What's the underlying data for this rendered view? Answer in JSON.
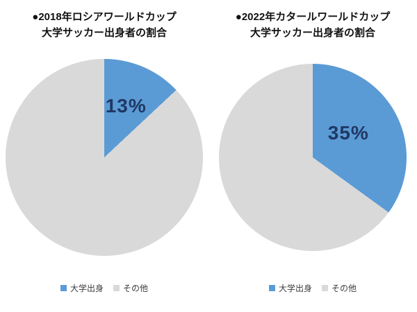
{
  "colors": {
    "series_blue": "#5B9BD5",
    "series_gray": "#D9D9D9",
    "data_label": "#1F3864",
    "title_text": "#111111",
    "legend_text": "#3b3b3b"
  },
  "chart_data": [
    {
      "type": "pie",
      "title_line1": "●2018年ロシアワールドカップ",
      "title_line2": "大学サッカー出身者の割合",
      "slices": [
        {
          "label": "大学出身",
          "value": 13,
          "color": "#5B9BD5"
        },
        {
          "label": "その他",
          "value": 87,
          "color": "#D9D9D9"
        }
      ],
      "data_label": "13%",
      "start_angle_deg": 0,
      "direction": "clockwise",
      "legend_position": "bottom"
    },
    {
      "type": "pie",
      "title_line1": "●2022年カタールワールドカップ",
      "title_line2": "大学サッカー出身者の割合",
      "slices": [
        {
          "label": "大学出身",
          "value": 35,
          "color": "#5B9BD5"
        },
        {
          "label": "その他",
          "value": 65,
          "color": "#D9D9D9"
        }
      ],
      "data_label": "35%",
      "start_angle_deg": 0,
      "direction": "clockwise",
      "legend_position": "bottom"
    }
  ]
}
